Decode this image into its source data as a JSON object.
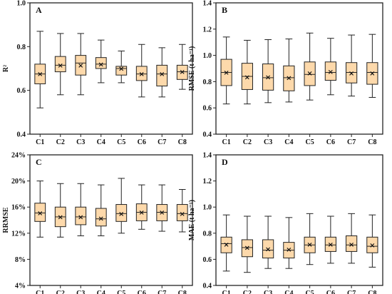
{
  "chart_data": [
    {
      "type": "boxplot",
      "panel": "A",
      "ylabel": "R²",
      "yticks": [
        "0.4",
        "0.6",
        "0.8",
        "1.0"
      ],
      "ylim": [
        0.4,
        1.0
      ],
      "categories": [
        "C1",
        "C2",
        "C3",
        "C4",
        "C5",
        "C6",
        "C7",
        "C8"
      ],
      "boxes": [
        {
          "min": 0.52,
          "q1": 0.63,
          "median": 0.675,
          "q3": 0.72,
          "max": 0.87,
          "mean": 0.675
        },
        {
          "min": 0.58,
          "q1": 0.685,
          "median": 0.715,
          "q3": 0.755,
          "max": 0.86,
          "mean": 0.715
        },
        {
          "min": 0.58,
          "q1": 0.67,
          "median": 0.725,
          "q3": 0.76,
          "max": 0.86,
          "mean": 0.715
        },
        {
          "min": 0.635,
          "q1": 0.7,
          "median": 0.72,
          "q3": 0.75,
          "max": 0.83,
          "mean": 0.72
        },
        {
          "min": 0.635,
          "q1": 0.67,
          "median": 0.7,
          "q3": 0.71,
          "max": 0.78,
          "mean": 0.7
        },
        {
          "min": 0.57,
          "q1": 0.645,
          "median": 0.675,
          "q3": 0.71,
          "max": 0.81,
          "mean": 0.675
        },
        {
          "min": 0.57,
          "q1": 0.62,
          "median": 0.675,
          "q3": 0.715,
          "max": 0.795,
          "mean": 0.675
        },
        {
          "min": 0.605,
          "q1": 0.65,
          "median": 0.685,
          "q3": 0.715,
          "max": 0.81,
          "mean": 0.685
        }
      ]
    },
    {
      "type": "boxplot",
      "panel": "B",
      "ylabel": "RMSE (t ha⁻¹)",
      "yticks": [
        "0.4",
        "0.6",
        "0.8",
        "1.0",
        "1.2",
        "1.4"
      ],
      "ylim": [
        0.4,
        1.4
      ],
      "categories": [
        "C1",
        "C2",
        "C3",
        "C4",
        "C5",
        "C6",
        "C7",
        "C8"
      ],
      "boxes": [
        {
          "min": 0.63,
          "q1": 0.77,
          "median": 0.87,
          "q3": 0.97,
          "max": 1.14,
          "mean": 0.87
        },
        {
          "min": 0.63,
          "q1": 0.74,
          "median": 0.84,
          "q3": 0.94,
          "max": 1.115,
          "mean": 0.835
        },
        {
          "min": 0.64,
          "q1": 0.735,
          "median": 0.83,
          "q3": 0.935,
          "max": 1.12,
          "mean": 0.835
        },
        {
          "min": 0.645,
          "q1": 0.73,
          "median": 0.83,
          "q3": 0.92,
          "max": 1.125,
          "mean": 0.83
        },
        {
          "min": 0.66,
          "q1": 0.77,
          "median": 0.855,
          "q3": 0.95,
          "max": 1.17,
          "mean": 0.865
        },
        {
          "min": 0.7,
          "q1": 0.81,
          "median": 0.87,
          "q3": 0.95,
          "max": 1.13,
          "mean": 0.875
        },
        {
          "min": 0.69,
          "q1": 0.79,
          "median": 0.87,
          "q3": 0.945,
          "max": 1.155,
          "mean": 0.865
        },
        {
          "min": 0.68,
          "q1": 0.78,
          "median": 0.87,
          "q3": 0.945,
          "max": 1.16,
          "mean": 0.865
        }
      ]
    },
    {
      "type": "boxplot",
      "panel": "C",
      "ylabel": "RRMSE",
      "yticks": [
        "4%",
        "8%",
        "12%",
        "16%",
        "20%",
        "24%"
      ],
      "ylim": [
        4,
        24
      ],
      "categories": [
        "C1",
        "C2",
        "C3",
        "C4",
        "C5",
        "C6",
        "C7",
        "C8"
      ],
      "boxes": [
        {
          "min": 11.4,
          "q1": 13.8,
          "median": 15.1,
          "q3": 16.6,
          "max": 20.0,
          "mean": 15.1
        },
        {
          "min": 11.4,
          "q1": 13.0,
          "median": 14.5,
          "q3": 16.0,
          "max": 19.6,
          "mean": 14.5
        },
        {
          "min": 11.6,
          "q1": 13.3,
          "median": 14.5,
          "q3": 16.0,
          "max": 19.6,
          "mean": 14.5
        },
        {
          "min": 11.6,
          "q1": 13.1,
          "median": 14.2,
          "q3": 15.8,
          "max": 19.4,
          "mean": 14.3
        },
        {
          "min": 12.0,
          "q1": 13.8,
          "median": 15.0,
          "q3": 16.4,
          "max": 20.4,
          "mean": 15.0
        },
        {
          "min": 12.6,
          "q1": 13.9,
          "median": 15.2,
          "q3": 16.5,
          "max": 19.4,
          "mean": 15.2
        },
        {
          "min": 12.3,
          "q1": 13.9,
          "median": 15.2,
          "q3": 16.4,
          "max": 19.4,
          "mean": 15.2
        },
        {
          "min": 12.2,
          "q1": 13.9,
          "median": 15.0,
          "q3": 16.4,
          "max": 18.7,
          "mean": 15.0
        }
      ]
    },
    {
      "type": "boxplot",
      "panel": "D",
      "ylabel": "MAE (t ha⁻¹)",
      "yticks": [
        "0.4",
        "0.6",
        "0.8",
        "1.0",
        "1.2",
        "1.4"
      ],
      "ylim": [
        0.4,
        1.4
      ],
      "categories": [
        "C1",
        "C2",
        "C3",
        "C4",
        "C5",
        "C6",
        "C7",
        "C8"
      ],
      "boxes": [
        {
          "min": 0.51,
          "q1": 0.65,
          "median": 0.72,
          "q3": 0.77,
          "max": 0.94,
          "mean": 0.715
        },
        {
          "min": 0.5,
          "q1": 0.62,
          "median": 0.69,
          "q3": 0.75,
          "max": 0.93,
          "mean": 0.69
        },
        {
          "min": 0.53,
          "q1": 0.61,
          "median": 0.67,
          "q3": 0.75,
          "max": 0.93,
          "mean": 0.68
        },
        {
          "min": 0.53,
          "q1": 0.61,
          "median": 0.67,
          "q3": 0.73,
          "max": 0.92,
          "mean": 0.675
        },
        {
          "min": 0.56,
          "q1": 0.65,
          "median": 0.71,
          "q3": 0.77,
          "max": 0.95,
          "mean": 0.715
        },
        {
          "min": 0.57,
          "q1": 0.66,
          "median": 0.71,
          "q3": 0.77,
          "max": 0.93,
          "mean": 0.715
        },
        {
          "min": 0.57,
          "q1": 0.66,
          "median": 0.71,
          "q3": 0.78,
          "max": 0.95,
          "mean": 0.715
        },
        {
          "min": 0.54,
          "q1": 0.65,
          "median": 0.7,
          "q3": 0.77,
          "max": 0.94,
          "mean": 0.71
        }
      ]
    }
  ],
  "colors": {
    "box_fill": "#fdd9ab",
    "line": "#222222"
  },
  "mean_marker": "×"
}
